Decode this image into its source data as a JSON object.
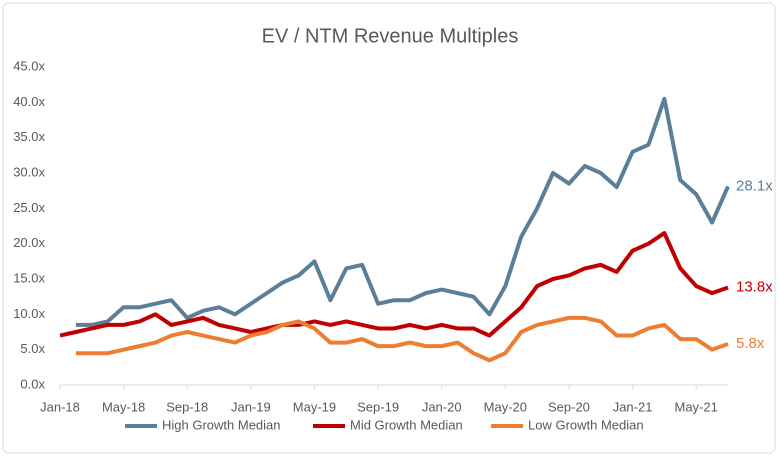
{
  "chart_data": {
    "type": "line",
    "title": "EV / NTM Revenue Multiples",
    "x": [
      0,
      1,
      2,
      3,
      4,
      5,
      6,
      7,
      8,
      9,
      10,
      11,
      12,
      13,
      14,
      15,
      16,
      17,
      18,
      19,
      20,
      21,
      22,
      23,
      24,
      25,
      26,
      27,
      28,
      29,
      30,
      31,
      32,
      33,
      34,
      35,
      36,
      37,
      38,
      39,
      40,
      41,
      42
    ],
    "xlim": [
      0,
      42
    ],
    "xticks": [
      {
        "value": 0,
        "label": "Jan-18"
      },
      {
        "value": 4,
        "label": "May-18"
      },
      {
        "value": 8,
        "label": "Sep-18"
      },
      {
        "value": 12,
        "label": "Jan-19"
      },
      {
        "value": 16,
        "label": "May-19"
      },
      {
        "value": 20,
        "label": "Sep-19"
      },
      {
        "value": 24,
        "label": "Jan-20"
      },
      {
        "value": 28,
        "label": "May-20"
      },
      {
        "value": 32,
        "label": "Sep-20"
      },
      {
        "value": 36,
        "label": "Jan-21"
      },
      {
        "value": 40,
        "label": "May-21"
      }
    ],
    "ylim": [
      0,
      45
    ],
    "yticks": [
      {
        "value": 0,
        "label": "0.0x"
      },
      {
        "value": 5,
        "label": "5.0x"
      },
      {
        "value": 10,
        "label": "10.0x"
      },
      {
        "value": 15,
        "label": "15.0x"
      },
      {
        "value": 20,
        "label": "20.0x"
      },
      {
        "value": 25,
        "label": "25.0x"
      },
      {
        "value": 30,
        "label": "30.0x"
      },
      {
        "value": 35,
        "label": "35.0x"
      },
      {
        "value": 40,
        "label": "40.0x"
      },
      {
        "value": 45,
        "label": "45.0x"
      }
    ],
    "grid": false,
    "legend": "bottom",
    "series": [
      {
        "name": "High Growth Median",
        "color": "#5b7f99",
        "values": [
          null,
          8.5,
          8.5,
          9.0,
          11.0,
          11.0,
          11.5,
          12.0,
          9.5,
          10.5,
          11.0,
          10.0,
          11.5,
          13.0,
          14.5,
          15.5,
          17.5,
          12.0,
          16.5,
          17.0,
          11.5,
          12.0,
          12.0,
          13.0,
          13.5,
          13.0,
          12.5,
          10.0,
          14.0,
          21.0,
          25.0,
          30.0,
          28.5,
          31.0,
          30.0,
          28.0,
          33.0,
          34.0,
          40.5,
          29.0,
          27.0,
          23.0,
          28.1
        ],
        "value_labels": [
          null,
          null,
          null,
          null,
          null,
          null,
          null,
          null,
          null,
          null,
          null,
          null,
          null,
          null,
          null,
          null,
          null,
          null,
          null,
          null,
          null,
          null,
          null,
          null,
          null,
          null,
          null,
          null,
          null,
          null,
          null,
          null,
          null,
          null,
          null,
          null,
          null,
          null,
          null,
          null,
          null,
          null,
          "28.1x"
        ]
      },
      {
        "name": "Mid Growth Median",
        "color": "#c00000",
        "values": [
          7.0,
          7.5,
          8.0,
          8.5,
          8.5,
          9.0,
          10.0,
          8.5,
          9.0,
          9.5,
          8.5,
          8.0,
          7.5,
          8.0,
          8.5,
          8.5,
          9.0,
          8.5,
          9.0,
          8.5,
          8.0,
          8.0,
          8.5,
          8.0,
          8.5,
          8.0,
          8.0,
          7.0,
          9.0,
          11.0,
          14.0,
          15.0,
          15.5,
          16.5,
          17.0,
          16.0,
          19.0,
          20.0,
          21.5,
          16.5,
          14.0,
          13.0,
          13.8
        ],
        "value_labels": [
          null,
          null,
          null,
          null,
          null,
          null,
          null,
          null,
          null,
          null,
          null,
          null,
          null,
          null,
          null,
          null,
          null,
          null,
          null,
          null,
          null,
          null,
          null,
          null,
          null,
          null,
          null,
          null,
          null,
          null,
          null,
          null,
          null,
          null,
          null,
          null,
          null,
          null,
          null,
          null,
          null,
          null,
          "13.8x"
        ]
      },
      {
        "name": "Low Growth Median",
        "color": "#ed7d31",
        "values": [
          null,
          4.5,
          4.5,
          4.5,
          5.0,
          5.5,
          6.0,
          7.0,
          7.5,
          7.0,
          6.5,
          6.0,
          7.0,
          7.5,
          8.5,
          9.0,
          8.0,
          6.0,
          6.0,
          6.5,
          5.5,
          5.5,
          6.0,
          5.5,
          5.5,
          6.0,
          4.5,
          3.5,
          4.5,
          7.5,
          8.5,
          9.0,
          9.5,
          9.5,
          9.0,
          7.0,
          7.0,
          8.0,
          8.5,
          6.5,
          6.5,
          5.0,
          5.8
        ],
        "value_labels": [
          null,
          null,
          null,
          null,
          null,
          null,
          null,
          null,
          null,
          null,
          null,
          null,
          null,
          null,
          null,
          null,
          null,
          null,
          null,
          null,
          null,
          null,
          null,
          null,
          null,
          null,
          null,
          null,
          null,
          null,
          null,
          null,
          null,
          null,
          null,
          null,
          null,
          null,
          null,
          null,
          null,
          null,
          "5.8x"
        ]
      }
    ]
  }
}
